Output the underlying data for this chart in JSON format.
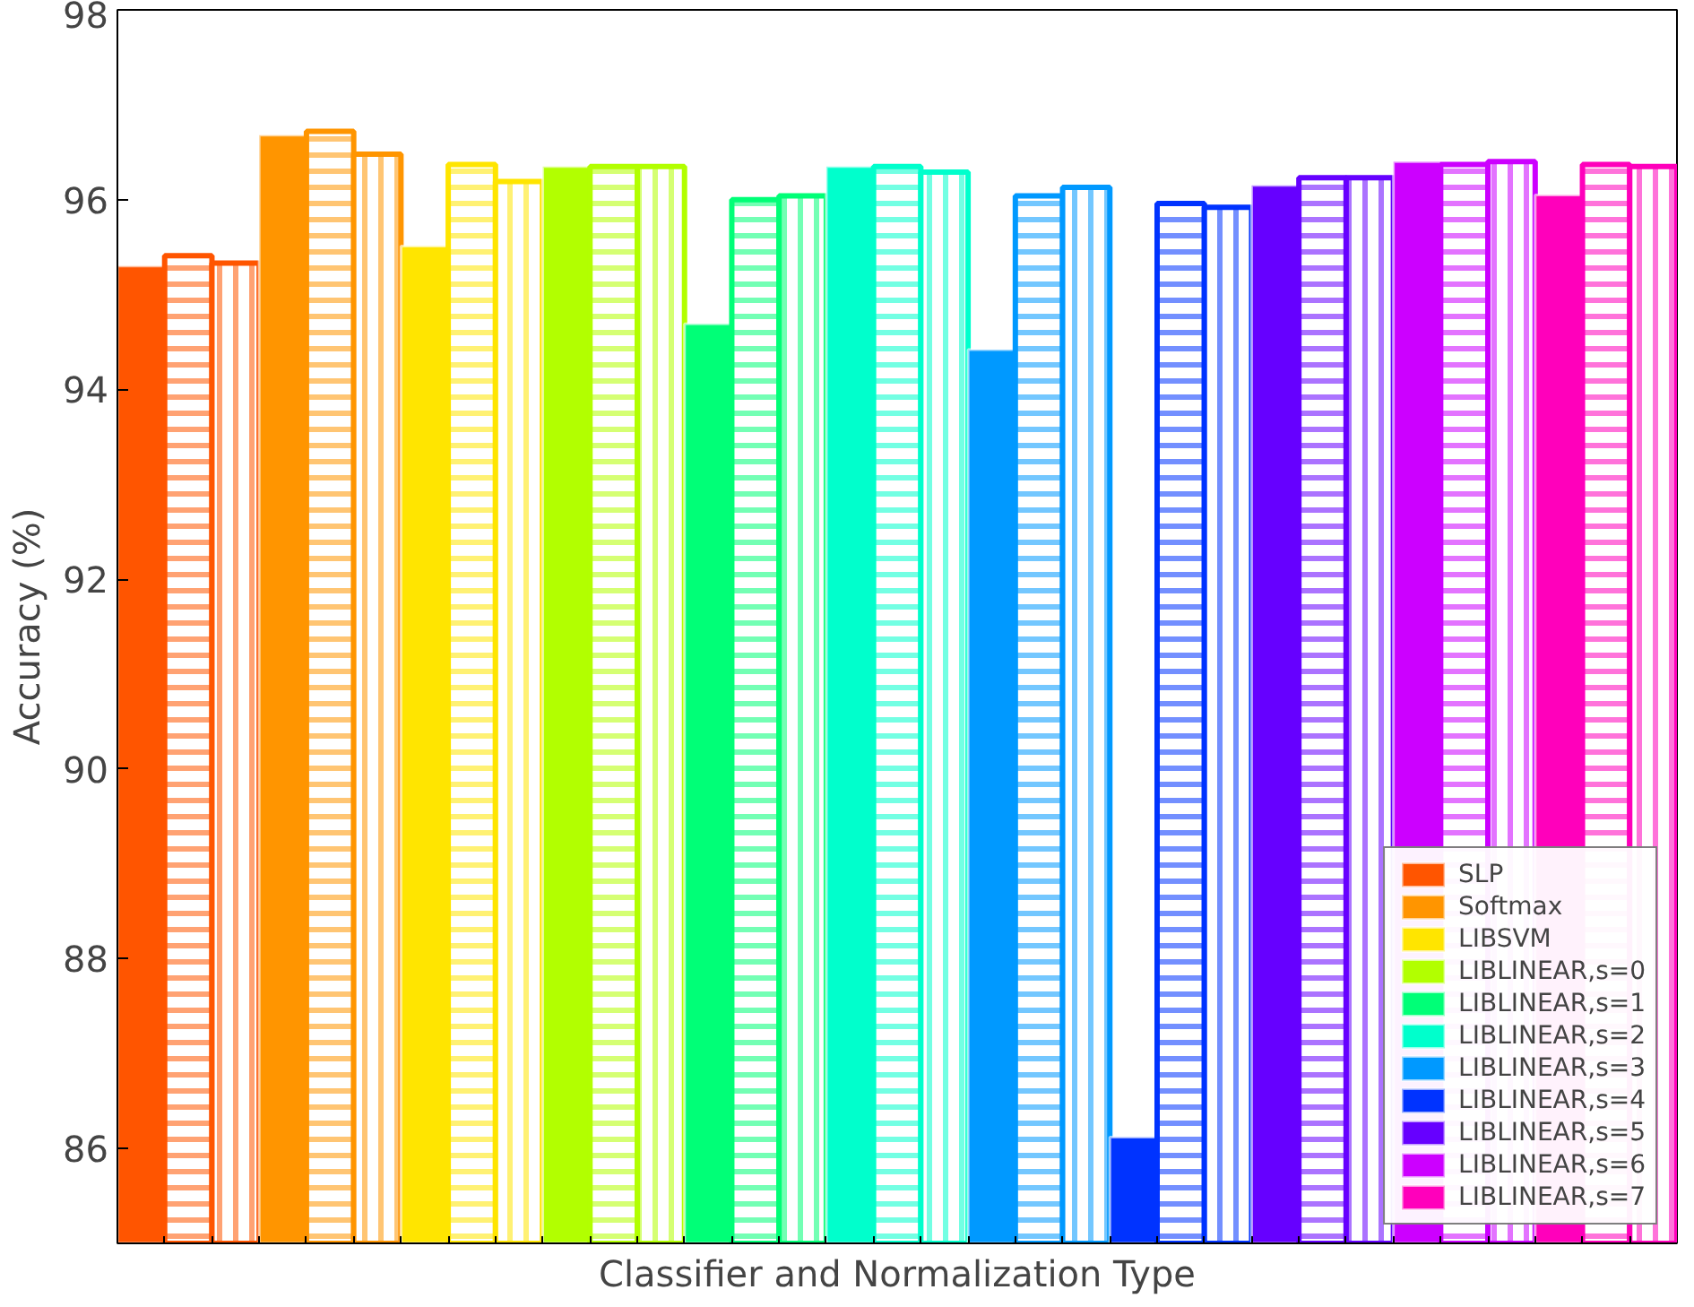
{
  "chart_data": {
    "type": "bar",
    "xlabel": "Classifier and Normalization Type",
    "ylabel": "Accuracy (%)",
    "categories": [
      null,
      null,
      null,
      null,
      null,
      null,
      null,
      null,
      null,
      null,
      null,
      null,
      null,
      null,
      null,
      null,
      null,
      null,
      null,
      null,
      null,
      null,
      null,
      null,
      null,
      null,
      null,
      null,
      null,
      null,
      null,
      null,
      null
    ],
    "series": [
      {
        "name": "SLP",
        "color": "#ff5500",
        "values": [
          95.3,
          95.41,
          95.33,
          null,
          null,
          null,
          null,
          null,
          null,
          null,
          null,
          null,
          null,
          null,
          null,
          null,
          null,
          null,
          null,
          null,
          null,
          null,
          null,
          null,
          null,
          null,
          null,
          null,
          null,
          null,
          null,
          null,
          null
        ]
      },
      {
        "name": "Softmax",
        "color": "#ff9500",
        "values": [
          null,
          null,
          null,
          96.68,
          96.72,
          96.48,
          null,
          null,
          null,
          null,
          null,
          null,
          null,
          null,
          null,
          null,
          null,
          null,
          null,
          null,
          null,
          null,
          null,
          null,
          null,
          null,
          null,
          null,
          null,
          null,
          null,
          null,
          null
        ]
      },
      {
        "name": "LIBSVM",
        "color": "#ffe500",
        "values": [
          null,
          null,
          null,
          null,
          null,
          null,
          95.51,
          96.37,
          96.19,
          null,
          null,
          null,
          null,
          null,
          null,
          null,
          null,
          null,
          null,
          null,
          null,
          null,
          null,
          null,
          null,
          null,
          null,
          null,
          null,
          null,
          null,
          null,
          null
        ]
      },
      {
        "name": "LIBLINEAR,s=0",
        "color": "#b2ff00",
        "values": [
          null,
          null,
          null,
          null,
          null,
          null,
          null,
          null,
          null,
          96.35,
          96.35,
          96.35,
          null,
          null,
          null,
          null,
          null,
          null,
          null,
          null,
          null,
          null,
          null,
          null,
          null,
          null,
          null,
          null,
          null,
          null,
          null,
          null,
          null
        ]
      },
      {
        "name": "LIBLINEAR,s=1",
        "color": "#00ff77",
        "values": [
          null,
          null,
          null,
          null,
          null,
          null,
          null,
          null,
          null,
          null,
          null,
          null,
          94.69,
          96.0,
          96.04,
          null,
          null,
          null,
          null,
          null,
          null,
          null,
          null,
          null,
          null,
          null,
          null,
          null,
          null,
          null,
          null,
          null,
          null
        ]
      },
      {
        "name": "LIBLINEAR,s=2",
        "color": "#00ffcc",
        "values": [
          null,
          null,
          null,
          null,
          null,
          null,
          null,
          null,
          null,
          null,
          null,
          null,
          null,
          null,
          null,
          96.35,
          96.35,
          96.29,
          null,
          null,
          null,
          null,
          null,
          null,
          null,
          null,
          null,
          null,
          null,
          null,
          null,
          null,
          null
        ]
      },
      {
        "name": "LIBLINEAR,s=3",
        "color": "#0099ff",
        "values": [
          null,
          null,
          null,
          null,
          null,
          null,
          null,
          null,
          null,
          null,
          null,
          null,
          null,
          null,
          null,
          null,
          null,
          null,
          94.42,
          96.04,
          96.13,
          null,
          null,
          null,
          null,
          null,
          null,
          null,
          null,
          null,
          null,
          null,
          null
        ]
      },
      {
        "name": "LIBLINEAR,s=4",
        "color": "#0033ff",
        "values": [
          null,
          null,
          null,
          null,
          null,
          null,
          null,
          null,
          null,
          null,
          null,
          null,
          null,
          null,
          null,
          null,
          null,
          null,
          null,
          null,
          null,
          86.12,
          95.96,
          95.92,
          null,
          null,
          null,
          null,
          null,
          null,
          null,
          null,
          null
        ]
      },
      {
        "name": "LIBLINEAR,s=5",
        "color": "#6600ff",
        "values": [
          null,
          null,
          null,
          null,
          null,
          null,
          null,
          null,
          null,
          null,
          null,
          null,
          null,
          null,
          null,
          null,
          null,
          null,
          null,
          null,
          null,
          null,
          null,
          null,
          96.15,
          96.23,
          96.23,
          null,
          null,
          null,
          null,
          null,
          null
        ]
      },
      {
        "name": "LIBLINEAR,s=6",
        "color": "#cc00ff",
        "values": [
          null,
          null,
          null,
          null,
          null,
          null,
          null,
          null,
          null,
          null,
          null,
          null,
          null,
          null,
          null,
          null,
          null,
          null,
          null,
          null,
          null,
          null,
          null,
          null,
          null,
          null,
          null,
          96.4,
          96.37,
          96.4,
          null,
          null,
          null
        ]
      },
      {
        "name": "LIBLINEAR,s=7",
        "color": "#ff00bb",
        "values": [
          null,
          null,
          null,
          null,
          null,
          null,
          null,
          null,
          null,
          null,
          null,
          null,
          null,
          null,
          null,
          null,
          null,
          null,
          null,
          null,
          null,
          null,
          null,
          null,
          null,
          null,
          null,
          null,
          null,
          null,
          96.05,
          96.37,
          96.35
        ]
      }
    ],
    "ylim": [
      85,
      98
    ],
    "yticks": [
      86,
      88,
      90,
      92,
      94,
      96,
      98
    ],
    "grid": false,
    "legend": "bottom right",
    "tick_labels": "y"
  }
}
